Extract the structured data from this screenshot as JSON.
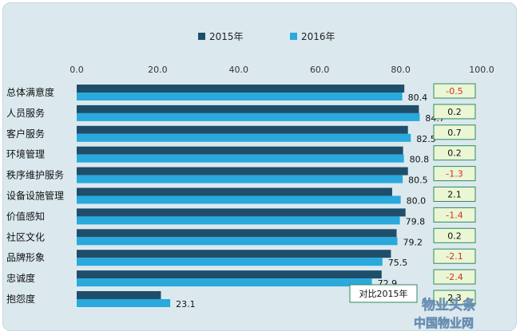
{
  "chart_data": {
    "type": "bar",
    "orientation": "horizontal",
    "categories": [
      "总体满意度",
      "人员服务",
      "客户服务",
      "环境管理",
      "秩序维护服务",
      "设备设施管理",
      "价值感知",
      "社区文化",
      "品牌形象",
      "忠诚度",
      "抱怨度"
    ],
    "series": [
      {
        "name": "2015年",
        "color": "#1f4e6b",
        "values": [
          80.9,
          84.5,
          81.8,
          80.6,
          81.8,
          77.9,
          81.2,
          79.0,
          77.6,
          75.3,
          20.8
        ]
      },
      {
        "name": "2016年",
        "color": "#29a9dc",
        "values": [
          80.4,
          84.7,
          82.5,
          80.8,
          80.5,
          80.0,
          79.8,
          79.2,
          75.5,
          72.9,
          23.1
        ]
      }
    ],
    "data_labels": [
      "80.4",
      "84.7",
      "82.5",
      "80.8",
      "80.5",
      "80.0",
      "79.8",
      "79.2",
      "75.5",
      "72.9",
      "23.1"
    ],
    "comparison": {
      "title": "对比2015年",
      "labels": [
        "-0.5",
        "0.2",
        "0.7",
        "0.2",
        "-1.3",
        "2.1",
        "-1.4",
        "0.2",
        "-2.1",
        "-2.4",
        "2.3"
      ],
      "positive_color": "#111111",
      "negative_color": "#d2312c",
      "box_fill": "#eaf6d4",
      "box_border": "#2f8a5e"
    },
    "xlim": [
      0,
      100
    ],
    "x_ticks": [
      "0.0",
      "20.0",
      "40.0",
      "60.0",
      "80.0",
      "100.0"
    ],
    "x_tick_values": [
      0,
      20,
      40,
      60,
      80,
      100
    ],
    "legend_position": "top",
    "grid": false
  },
  "watermark": {
    "line1": "物业头条",
    "line2": "中国物业网"
  }
}
